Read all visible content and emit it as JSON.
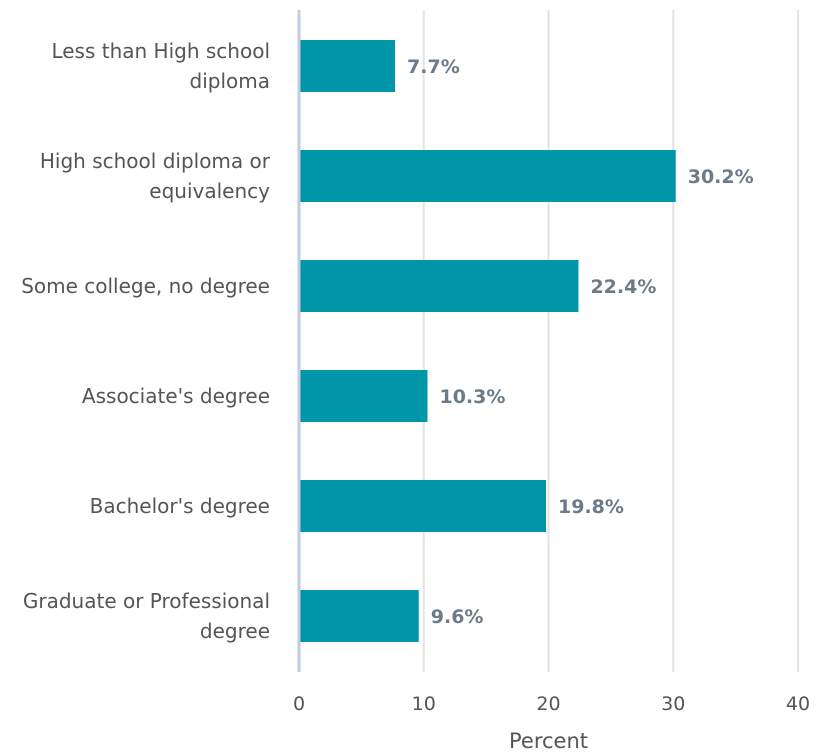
{
  "chart_data": {
    "type": "bar",
    "orientation": "horizontal",
    "categories": [
      "Less than High school diploma",
      "High school diploma or equivalency",
      "Some college, no degree",
      "Associate's degree",
      "Bachelor's degree",
      "Graduate or Professional degree"
    ],
    "values": [
      7.7,
      30.2,
      22.4,
      10.3,
      19.8,
      9.6
    ],
    "data_labels": [
      "7.7%",
      "30.2%",
      "22.4%",
      "10.3%",
      "19.8%",
      "9.6%"
    ],
    "xlabel": "Percent",
    "xlim": [
      0,
      40
    ],
    "xticks": [
      0,
      10,
      20,
      30,
      40
    ],
    "bar_color": "#0096a8",
    "grid": true
  }
}
